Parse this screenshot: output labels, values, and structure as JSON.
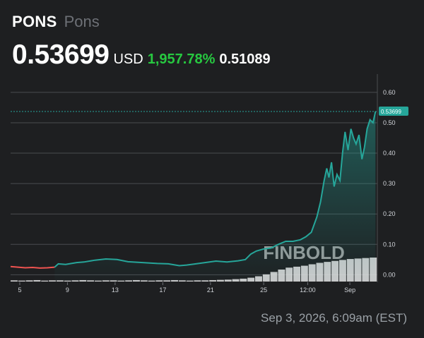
{
  "header": {
    "ticker": "PONS",
    "name": "Pons",
    "price": "0.53699",
    "currency": "USD",
    "change": "1,957.78%",
    "prev_value": "0.51089"
  },
  "timestamp": "Sep 3, 2026, 6:09am (EST)",
  "watermark": "FINBOLD",
  "colors": {
    "up": "#26a69a",
    "down": "#ef5350",
    "change_text": "#27c840",
    "background": "#1e1f21",
    "grid": "#4a4c50"
  },
  "chart_data": {
    "type": "line",
    "title": "",
    "xlabel": "",
    "ylabel": "",
    "ylim": [
      -0.02,
      0.66
    ],
    "y_ticks": [
      "0.00",
      "0.10",
      "0.20",
      "0.30",
      "0.40",
      "0.50",
      "0.60"
    ],
    "x_ticks": [
      "5",
      "9",
      "13",
      "17",
      "21",
      "25",
      "12:00",
      "Sep"
    ],
    "current_value_label": "0.53699",
    "grid": "horizontal",
    "series": [
      {
        "color_before_segment": "down",
        "points": [
          [
            0.0,
            0.027
          ],
          [
            0.02,
            0.025
          ],
          [
            0.04,
            0.023
          ],
          [
            0.06,
            0.024
          ],
          [
            0.08,
            0.022
          ],
          [
            0.1,
            0.023
          ],
          [
            0.12,
            0.025
          ],
          [
            0.13,
            0.036
          ],
          [
            0.15,
            0.034
          ],
          [
            0.18,
            0.04
          ],
          [
            0.2,
            0.042
          ],
          [
            0.23,
            0.048
          ],
          [
            0.26,
            0.052
          ],
          [
            0.29,
            0.05
          ],
          [
            0.32,
            0.043
          ],
          [
            0.36,
            0.04
          ],
          [
            0.4,
            0.037
          ],
          [
            0.43,
            0.036
          ],
          [
            0.46,
            0.03
          ],
          [
            0.48,
            0.032
          ],
          [
            0.5,
            0.035
          ],
          [
            0.53,
            0.04
          ],
          [
            0.56,
            0.045
          ],
          [
            0.59,
            0.042
          ],
          [
            0.62,
            0.046
          ],
          [
            0.64,
            0.05
          ],
          [
            0.655,
            0.068
          ],
          [
            0.67,
            0.078
          ],
          [
            0.69,
            0.085
          ],
          [
            0.71,
            0.088
          ],
          [
            0.73,
            0.1
          ],
          [
            0.75,
            0.11
          ],
          [
            0.77,
            0.11
          ],
          [
            0.79,
            0.115
          ],
          [
            0.805,
            0.125
          ],
          [
            0.82,
            0.14
          ],
          [
            0.835,
            0.19
          ],
          [
            0.845,
            0.24
          ],
          [
            0.855,
            0.31
          ],
          [
            0.862,
            0.35
          ],
          [
            0.868,
            0.32
          ],
          [
            0.875,
            0.37
          ],
          [
            0.882,
            0.29
          ],
          [
            0.89,
            0.33
          ],
          [
            0.898,
            0.31
          ],
          [
            0.905,
            0.4
          ],
          [
            0.912,
            0.47
          ],
          [
            0.92,
            0.41
          ],
          [
            0.928,
            0.48
          ],
          [
            0.935,
            0.45
          ],
          [
            0.942,
            0.43
          ],
          [
            0.95,
            0.46
          ],
          [
            0.958,
            0.38
          ],
          [
            0.965,
            0.42
          ],
          [
            0.972,
            0.48
          ],
          [
            0.98,
            0.51
          ],
          [
            0.988,
            0.5
          ],
          [
            0.995,
            0.537
          ]
        ]
      }
    ],
    "volume_relative": [
      0.05,
      0.04,
      0.05,
      0.06,
      0.04,
      0.05,
      0.05,
      0.04,
      0.05,
      0.06,
      0.05,
      0.04,
      0.05,
      0.05,
      0.04,
      0.05,
      0.06,
      0.05,
      0.04,
      0.05,
      0.05,
      0.06,
      0.05,
      0.04,
      0.05,
      0.05,
      0.06,
      0.07,
      0.08,
      0.1,
      0.12,
      0.16,
      0.22,
      0.3,
      0.4,
      0.5,
      0.58,
      0.62,
      0.66,
      0.72,
      0.78,
      0.82,
      0.86,
      0.9,
      0.94,
      0.96,
      0.98,
      1.0
    ]
  }
}
